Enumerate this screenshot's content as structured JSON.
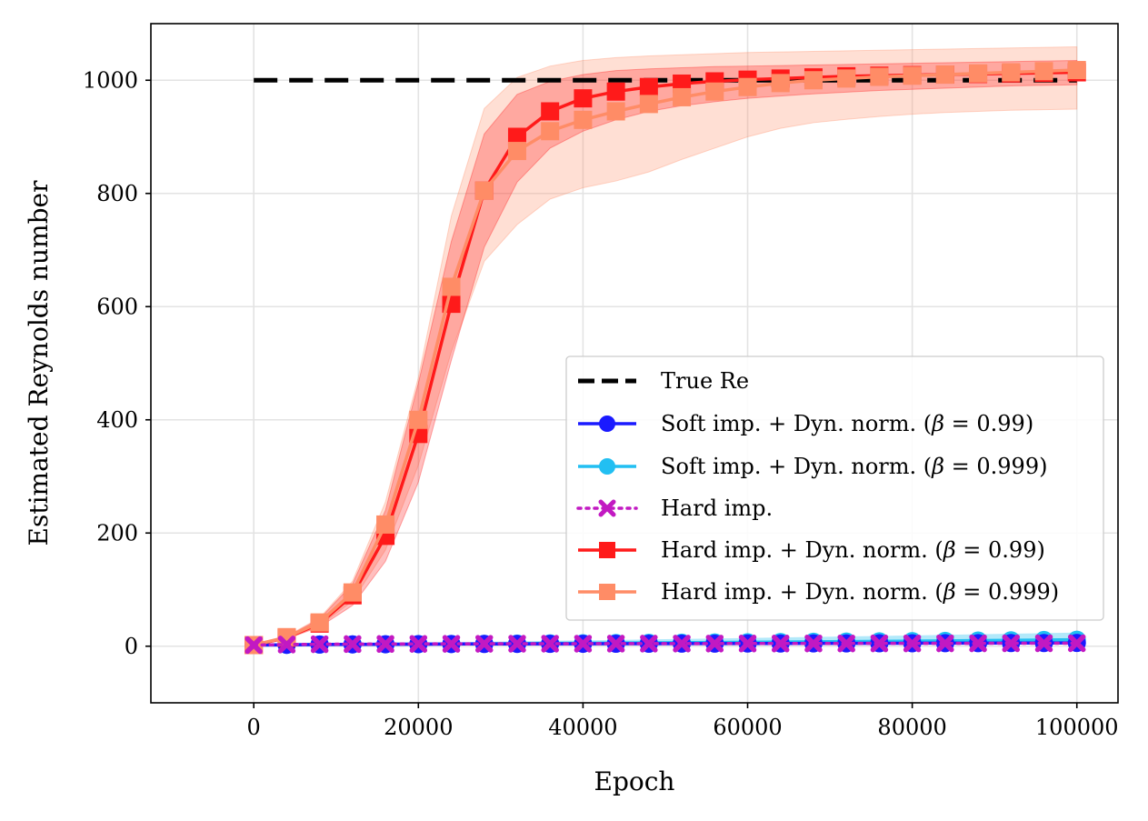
{
  "chart_data": {
    "type": "line",
    "title": "",
    "xlabel": "Epoch",
    "ylabel": "Estimated Reynolds number",
    "xlim": [
      -12500,
      105000
    ],
    "ylim": [
      -100,
      1100
    ],
    "xticks": [
      0,
      20000,
      40000,
      60000,
      80000,
      100000
    ],
    "yticks": [
      0,
      200,
      400,
      600,
      800,
      1000
    ],
    "xtick_labels": [
      "0",
      "20000",
      "40000",
      "60000",
      "80000",
      "100000"
    ],
    "ytick_labels": [
      "0",
      "200",
      "400",
      "600",
      "800",
      "1000"
    ],
    "grid": true,
    "legend_position": "lower-right",
    "reference_line": {
      "name": "True Re",
      "value": 1000,
      "color": "#000000",
      "style": "dashed"
    },
    "x": [
      0,
      4000,
      8000,
      12000,
      16000,
      20000,
      24000,
      28000,
      32000,
      36000,
      40000,
      44000,
      48000,
      52000,
      56000,
      60000,
      64000,
      68000,
      72000,
      76000,
      80000,
      84000,
      88000,
      92000,
      96000,
      100000
    ],
    "series": [
      {
        "name": "Soft imp. + Dyn. norm. (β = 0.99)",
        "label_prefix": "Soft imp. + Dyn. norm. (",
        "beta_value": "0.99",
        "color": "#1a1aff",
        "marker": "circle",
        "style": "solid",
        "values": [
          2,
          2.5,
          3,
          3.3,
          3.5,
          3.7,
          3.9,
          4,
          4.1,
          4.2,
          4.3,
          4.4,
          4.5,
          4.6,
          4.7,
          4.8,
          4.9,
          5,
          5.1,
          5.2,
          5.3,
          5.4,
          5.5,
          5.6,
          5.7,
          5.8
        ]
      },
      {
        "name": "Soft imp. + Dyn. norm. (β = 0.999)",
        "label_prefix": "Soft imp. + Dyn. norm. (",
        "beta_value": "0.999",
        "color": "#22bff2",
        "marker": "circle",
        "style": "solid",
        "values": [
          2,
          2.5,
          3,
          3.3,
          3.5,
          3.8,
          4,
          4.3,
          4.6,
          5,
          5.3,
          5.6,
          6,
          6.3,
          6.7,
          7,
          7.4,
          7.8,
          8.2,
          8.6,
          9,
          9.5,
          10,
          10.5,
          11,
          11.5
        ],
        "band_width": [
          0,
          0.5,
          1,
          1.5,
          2,
          2.5,
          3,
          3.5,
          4,
          4.5,
          5,
          5.5,
          6,
          6.5,
          7,
          7.5,
          8,
          8.5,
          9,
          9.5,
          10,
          10.5,
          11,
          11.5,
          12,
          12.5
        ]
      },
      {
        "name": "Hard imp.",
        "color": "#c219c2",
        "marker": "x",
        "style": "dotted",
        "values": [
          2,
          3,
          3.5,
          3.8,
          4,
          4.1,
          4.2,
          4.3,
          4.4,
          4.5,
          4.5,
          4.6,
          4.6,
          4.7,
          4.7,
          4.8,
          4.8,
          4.9,
          4.9,
          5,
          5,
          5.1,
          5.1,
          5.2,
          5.2,
          5.3
        ]
      },
      {
        "name": "Hard imp. + Dyn. norm. (β = 0.99)",
        "label_prefix": "Hard imp. + Dyn. norm. (",
        "beta_value": "0.99",
        "color": "#ff1a1a",
        "marker": "square",
        "style": "solid",
        "values": [
          2,
          15,
          40,
          90,
          195,
          375,
          605,
          805,
          900,
          945,
          968,
          980,
          988,
          994,
          998,
          1001,
          1003,
          1005,
          1007,
          1008,
          1009,
          1010,
          1011,
          1012,
          1013,
          1014
        ],
        "lower": [
          2,
          13,
          34,
          72,
          150,
          290,
          505,
          705,
          820,
          880,
          910,
          930,
          945,
          955,
          962,
          968,
          972,
          976,
          979,
          982,
          984,
          986,
          988,
          990,
          991,
          992
        ],
        "upper": [
          2,
          17,
          48,
          110,
          240,
          465,
          715,
          905,
          975,
          998,
          1010,
          1017,
          1020,
          1022,
          1024,
          1025,
          1026,
          1027,
          1028,
          1029,
          1030,
          1031,
          1032,
          1033,
          1034,
          1035
        ]
      },
      {
        "name": "Hard imp. + Dyn. norm. (β = 0.999)",
        "label_prefix": "Hard imp. + Dyn. norm. (",
        "beta_value": "0.999",
        "color": "#ff8c66",
        "marker": "square",
        "style": "solid",
        "values": [
          2,
          16,
          42,
          95,
          215,
          400,
          635,
          805,
          875,
          910,
          930,
          945,
          958,
          970,
          980,
          988,
          995,
          1000,
          1003,
          1006,
          1008,
          1010,
          1012,
          1014,
          1016,
          1018
        ],
        "lower": [
          2,
          14,
          36,
          80,
          170,
          320,
          520,
          680,
          745,
          790,
          810,
          822,
          838,
          860,
          880,
          900,
          915,
          925,
          931,
          936,
          940,
          943,
          945,
          947,
          948,
          949
        ],
        "upper": [
          2,
          18,
          50,
          115,
          255,
          475,
          760,
          950,
          1005,
          1025,
          1035,
          1040,
          1043,
          1045,
          1047,
          1049,
          1050,
          1051,
          1052,
          1053,
          1054,
          1055,
          1056,
          1057,
          1058,
          1059
        ]
      }
    ]
  }
}
